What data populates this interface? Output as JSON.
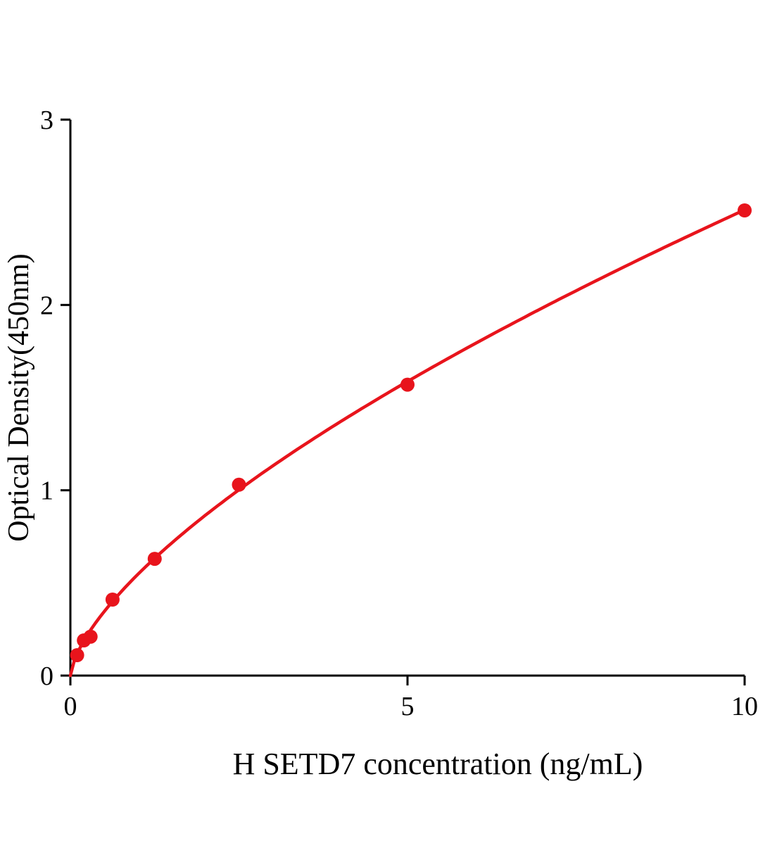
{
  "chart_data": {
    "type": "scatter",
    "title": "",
    "xlabel": "H SETD7 concentration (ng/mL)",
    "ylabel": "Optical Density(450nm)",
    "xlim": [
      0,
      10
    ],
    "ylim": [
      0,
      3
    ],
    "xticks": [
      0,
      5,
      10
    ],
    "yticks": [
      0,
      1,
      2,
      3
    ],
    "grid": false,
    "legend": "none",
    "marker_color": "#e8141c",
    "line_color": "#e8141c",
    "axis_color": "#000000",
    "points": [
      {
        "x": 0.1,
        "y": 0.11
      },
      {
        "x": 0.2,
        "y": 0.19
      },
      {
        "x": 0.3,
        "y": 0.21
      },
      {
        "x": 0.625,
        "y": 0.41
      },
      {
        "x": 1.25,
        "y": 0.63
      },
      {
        "x": 2.5,
        "y": 1.03
      },
      {
        "x": 5,
        "y": 1.57
      },
      {
        "x": 10,
        "y": 2.51
      }
    ],
    "fit": {
      "type": "power",
      "a": 0.546,
      "b": 0.663,
      "x_start": 0,
      "x_end": 10
    }
  }
}
